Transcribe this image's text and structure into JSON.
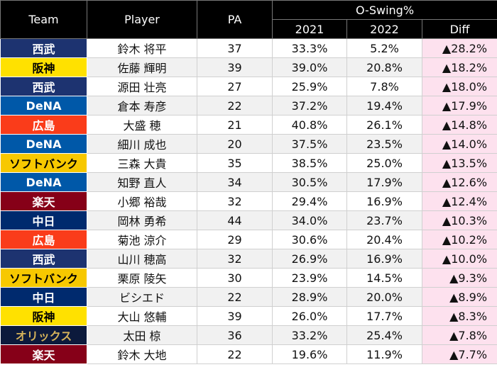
{
  "header": {
    "team": "Team",
    "player": "Player",
    "pa": "PA",
    "group": "O-Swing%",
    "y2021": "2021",
    "y2022": "2022",
    "diff": "Diff"
  },
  "rows": [
    {
      "team": "西武",
      "team_bg": "#1d3370",
      "team_fg": "#ffffff",
      "player": "鈴木 将平",
      "pa": "37",
      "y2021": "33.3%",
      "y2022": "5.2%",
      "diff": "▲28.2%"
    },
    {
      "team": "阪神",
      "team_bg": "#ffe100",
      "team_fg": "#000000",
      "player": "佐藤 輝明",
      "pa": "39",
      "y2021": "39.0%",
      "y2022": "20.8%",
      "diff": "▲18.2%"
    },
    {
      "team": "西武",
      "team_bg": "#1d3370",
      "team_fg": "#ffffff",
      "player": "源田 壮亮",
      "pa": "27",
      "y2021": "25.9%",
      "y2022": "7.8%",
      "diff": "▲18.0%"
    },
    {
      "team": "DeNA",
      "team_bg": "#0058a8",
      "team_fg": "#ffffff",
      "player": "倉本 寿彦",
      "pa": "22",
      "y2021": "37.2%",
      "y2022": "19.4%",
      "diff": "▲17.9%"
    },
    {
      "team": "広島",
      "team_bg": "#fa3c1a",
      "team_fg": "#ffffff",
      "player": "大盛 穂",
      "pa": "21",
      "y2021": "40.8%",
      "y2022": "26.1%",
      "diff": "▲14.8%"
    },
    {
      "team": "DeNA",
      "team_bg": "#0058a8",
      "team_fg": "#ffffff",
      "player": "細川 成也",
      "pa": "20",
      "y2021": "37.5%",
      "y2022": "23.5%",
      "diff": "▲14.0%"
    },
    {
      "team": "ソフトバンク",
      "team_bg": "#f7c800",
      "team_fg": "#000000",
      "player": "三森 大貴",
      "pa": "35",
      "y2021": "38.5%",
      "y2022": "25.0%",
      "diff": "▲13.5%"
    },
    {
      "team": "DeNA",
      "team_bg": "#0058a8",
      "team_fg": "#ffffff",
      "player": "知野 直人",
      "pa": "34",
      "y2021": "30.5%",
      "y2022": "17.9%",
      "diff": "▲12.6%"
    },
    {
      "team": "楽天",
      "team_bg": "#860018",
      "team_fg": "#ffffff",
      "player": "小郷 裕哉",
      "pa": "32",
      "y2021": "29.4%",
      "y2022": "16.9%",
      "diff": "▲12.4%"
    },
    {
      "team": "中日",
      "team_bg": "#002a6e",
      "team_fg": "#ffffff",
      "player": "岡林 勇希",
      "pa": "44",
      "y2021": "34.0%",
      "y2022": "23.7%",
      "diff": "▲10.3%"
    },
    {
      "team": "広島",
      "team_bg": "#fa3c1a",
      "team_fg": "#ffffff",
      "player": "菊池 涼介",
      "pa": "29",
      "y2021": "30.6%",
      "y2022": "20.4%",
      "diff": "▲10.2%"
    },
    {
      "team": "西武",
      "team_bg": "#1d3370",
      "team_fg": "#ffffff",
      "player": "山川 穂高",
      "pa": "32",
      "y2021": "26.9%",
      "y2022": "16.9%",
      "diff": "▲10.0%"
    },
    {
      "team": "ソフトバンク",
      "team_bg": "#f7c800",
      "team_fg": "#000000",
      "player": "栗原 陵矢",
      "pa": "30",
      "y2021": "23.9%",
      "y2022": "14.5%",
      "diff": "▲9.3%"
    },
    {
      "team": "中日",
      "team_bg": "#002a6e",
      "team_fg": "#ffffff",
      "player": "ビシエド",
      "pa": "22",
      "y2021": "28.9%",
      "y2022": "20.0%",
      "diff": "▲8.9%"
    },
    {
      "team": "阪神",
      "team_bg": "#ffe100",
      "team_fg": "#000000",
      "player": "大山 悠輔",
      "pa": "39",
      "y2021": "26.0%",
      "y2022": "17.7%",
      "diff": "▲8.3%"
    },
    {
      "team": "オリックス",
      "team_bg": "#0c1a3c",
      "team_fg": "#d4b25a",
      "player": "太田 椋",
      "pa": "36",
      "y2021": "33.2%",
      "y2022": "25.4%",
      "diff": "▲7.8%"
    },
    {
      "team": "楽天",
      "team_bg": "#860018",
      "team_fg": "#ffffff",
      "player": "鈴木 大地",
      "pa": "22",
      "y2021": "19.6%",
      "y2022": "11.9%",
      "diff": "▲7.7%"
    }
  ]
}
